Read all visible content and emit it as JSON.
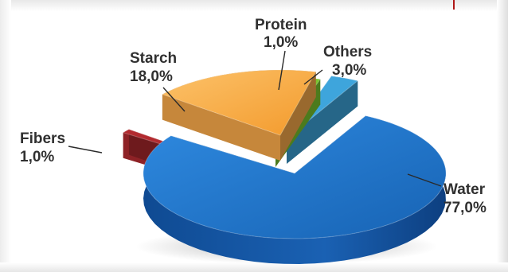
{
  "chart_data": {
    "type": "pie",
    "categories": [
      "Water",
      "Starch",
      "Fibers",
      "Protein",
      "Others"
    ],
    "values": [
      77.0,
      18.0,
      1.0,
      1.0,
      3.0
    ],
    "labels": [
      {
        "name": "Water",
        "value_text": "77,0%"
      },
      {
        "name": "Starch",
        "value_text": "18,0%"
      },
      {
        "name": "Fibers",
        "value_text": "1,0%"
      },
      {
        "name": "Protein",
        "value_text": "1,0%"
      },
      {
        "name": "Others",
        "value_text": "3,0%"
      }
    ],
    "colors": {
      "Water": "#1f6fc2",
      "Starch": "#f7a94a",
      "Fibers": "#b22a2f",
      "Protein": "#7ac62e",
      "Others": "#3ea5dc"
    },
    "style": "3d-exploded"
  }
}
